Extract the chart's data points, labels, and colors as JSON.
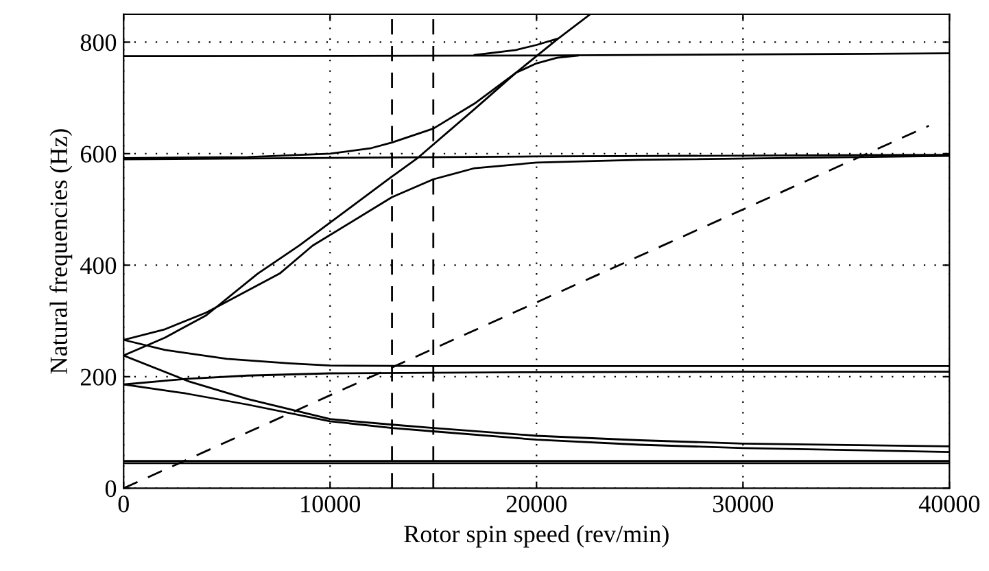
{
  "chart_data": {
    "type": "line",
    "xlabel": "Rotor spin speed (rev/min)",
    "ylabel": "Natural frequencies (Hz)",
    "xlim": [
      0,
      40000
    ],
    "ylim": [
      0,
      850
    ],
    "xticks": [
      0,
      10000,
      20000,
      30000,
      40000
    ],
    "yticks": [
      0,
      200,
      400,
      600,
      800
    ],
    "grid": true,
    "marker": "none",
    "line_style": "solid",
    "ref_lines": [
      {
        "axis": "x",
        "value": 13000,
        "color": "#000000",
        "line_style": "dashed"
      },
      {
        "axis": "x",
        "value": 15000,
        "color": "#000000",
        "line_style": "dashed"
      }
    ],
    "series": [
      {
        "color": "#000000",
        "x": [
          0,
          40000
        ],
        "values": [
          45,
          45
        ]
      },
      {
        "color": "#000000",
        "x": [
          0,
          40000
        ],
        "values": [
          49,
          49
        ]
      },
      {
        "color": "#000000",
        "x": [
          0,
          3000,
          6000,
          10000,
          13000,
          15000,
          20000,
          25000,
          30000,
          40000
        ],
        "values": [
          186,
          170,
          150,
          120,
          108,
          102,
          87,
          78,
          72,
          65
        ]
      },
      {
        "color": "#000000",
        "x": [
          0,
          3200,
          6000,
          10000,
          13000,
          15000,
          20000,
          25000,
          30000,
          40000
        ],
        "values": [
          238,
          191,
          160,
          124,
          114,
          108,
          94,
          86,
          80,
          75
        ]
      },
      {
        "color": "#000000",
        "x": [
          0,
          3000,
          6000,
          10000,
          15000,
          20000,
          30000,
          40000
        ],
        "values": [
          186,
          196,
          202,
          206,
          207,
          208,
          209,
          209
        ]
      },
      {
        "color": "#000000",
        "x": [
          0,
          2000,
          5000,
          8000,
          10000,
          15000,
          20000,
          30000,
          40000
        ],
        "values": [
          266,
          248,
          232,
          224,
          220,
          219,
          219,
          219,
          219
        ]
      },
      {
        "color": "#000000",
        "x": [
          0,
          2000,
          4000,
          6500,
          8500,
          13000,
          14200,
          17000,
          19000,
          21000,
          22600
        ],
        "values": [
          238,
          270,
          310,
          385,
          435,
          559,
          591,
          680,
          745,
          805,
          850
        ]
      },
      {
        "color": "#000000",
        "x": [
          0,
          2000,
          4000,
          7560,
          9150,
          13000,
          15000,
          17000,
          20000,
          25000,
          40000
        ],
        "values": [
          266,
          285,
          315,
          385,
          435,
          522,
          554,
          574,
          584,
          589,
          596
        ]
      },
      {
        "color": "#000000",
        "x": [
          0,
          20000,
          40000
        ],
        "values": [
          590,
          595,
          598
        ]
      },
      {
        "color": "#000000",
        "x": [
          0,
          6000,
          10000,
          12000,
          13000,
          15000,
          17000,
          19000,
          20000,
          21000,
          22000
        ],
        "values": [
          592,
          594,
          600,
          610,
          620,
          645,
          690,
          745,
          762,
          772,
          776
        ]
      },
      {
        "color": "#000000",
        "x": [
          0,
          20000,
          40000
        ],
        "values": [
          775,
          776,
          780
        ]
      },
      {
        "color": "#000000",
        "x": [
          17000,
          19000,
          20000,
          21000
        ],
        "values": [
          777,
          786,
          795,
          806
        ]
      },
      {
        "color": "#000000",
        "x": [
          0,
          39000
        ],
        "values": [
          0,
          650
        ],
        "line_style": "dashed"
      }
    ]
  }
}
